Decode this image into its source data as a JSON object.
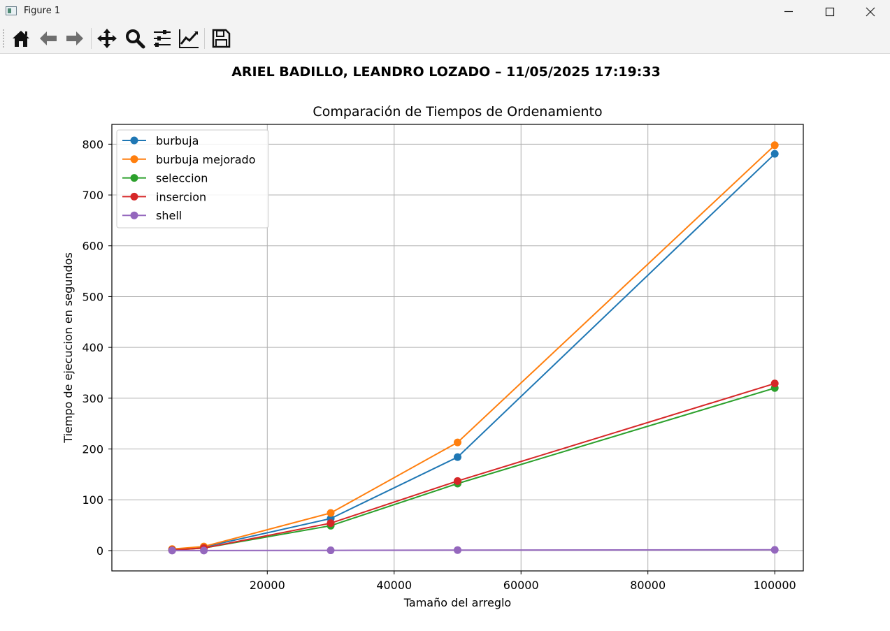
{
  "window": {
    "title": "Figure 1",
    "icon": "matplotlib-figure-icon",
    "controls": [
      "minimize-icon",
      "maximize-icon",
      "close-icon"
    ]
  },
  "toolbar": {
    "tools": [
      {
        "name": "home-icon"
      },
      {
        "name": "back-arrow-icon"
      },
      {
        "name": "forward-arrow-icon"
      },
      {
        "name": "pan-move-icon"
      },
      {
        "name": "zoom-magnifier-icon"
      },
      {
        "name": "subplots-config-icon"
      },
      {
        "name": "edit-axes-icon"
      },
      {
        "name": "save-floppy-icon"
      }
    ]
  },
  "figure": {
    "suptitle": "ARIEL BADILLO, LEANDRO LOZADO – 11/05/2025 17:19:33"
  },
  "chart_data": {
    "type": "line",
    "title": "Comparación de Tiempos de Ordenamiento",
    "xlabel": "Tamaño del arreglo",
    "ylabel": "Tiempo de ejecucion en segundos",
    "x": [
      5000,
      10000,
      30000,
      50000,
      100000
    ],
    "xlim": [
      -4500,
      104500
    ],
    "ylim": [
      -40,
      839
    ],
    "xticks": [
      20000,
      40000,
      60000,
      80000,
      100000
    ],
    "xtick_labels": [
      "20000",
      "40000",
      "60000",
      "80000",
      "100000"
    ],
    "yticks": [
      0,
      100,
      200,
      300,
      400,
      500,
      600,
      700,
      800
    ],
    "ytick_labels": [
      "0",
      "100",
      "200",
      "300",
      "400",
      "500",
      "600",
      "700",
      "800"
    ],
    "grid": true,
    "legend_position": "top-left",
    "marker": "circle",
    "series": [
      {
        "name": "burbuja",
        "color": "#1f77b4",
        "values": [
          2,
          7,
          63,
          184,
          781
        ]
      },
      {
        "name": "burbuja mejorado",
        "color": "#ff7f0e",
        "values": [
          3,
          8,
          74,
          213,
          798
        ]
      },
      {
        "name": "seleccion",
        "color": "#2ca02c",
        "values": [
          1,
          5,
          49,
          132,
          320
        ]
      },
      {
        "name": "insercion",
        "color": "#d62728",
        "values": [
          1,
          5,
          54,
          137,
          329
        ]
      },
      {
        "name": "shell",
        "color": "#9467bd",
        "values": [
          0,
          0,
          0.5,
          1,
          1.5
        ]
      }
    ]
  }
}
